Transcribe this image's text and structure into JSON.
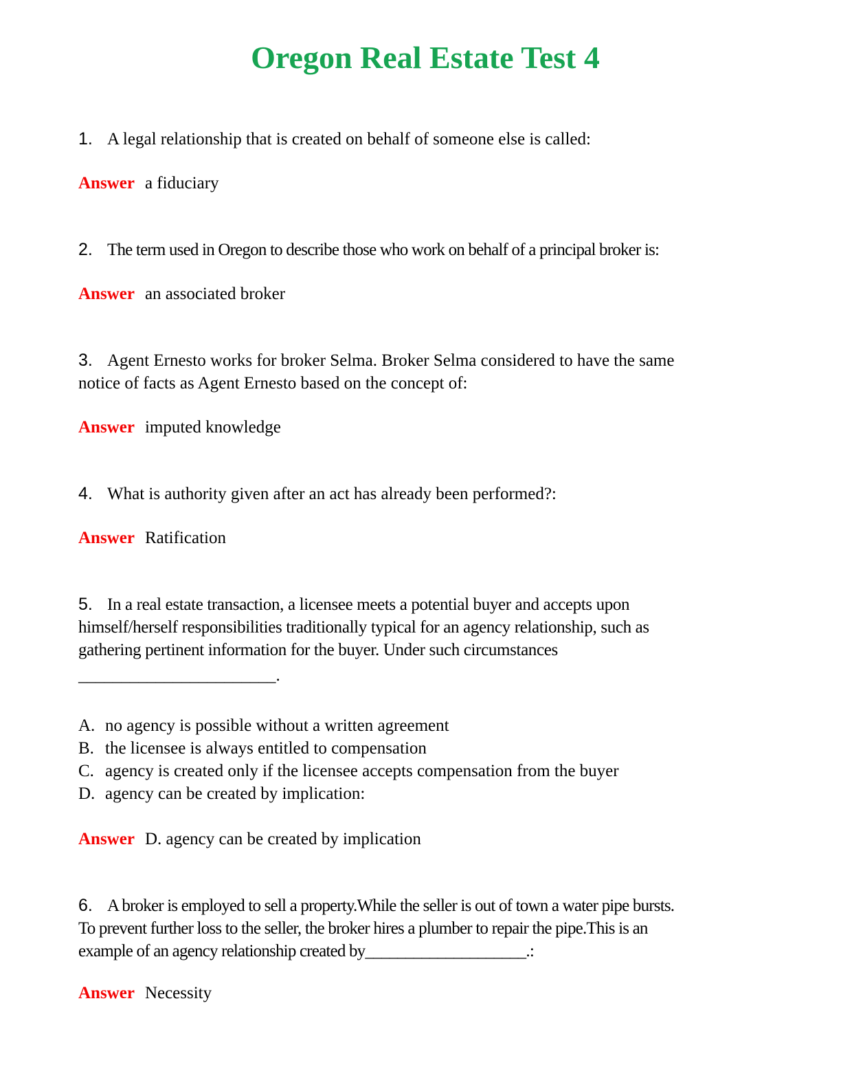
{
  "page": {
    "title": "Oregon Real Estate Test 4"
  },
  "colors": {
    "title_green": "#17a452",
    "answer_red": "#f40404"
  },
  "answer_label": "Answer",
  "questions": [
    {
      "number": "1.",
      "text": "A legal relationship that is created on behalf of someone else is called:",
      "answer": "a fiduciary"
    },
    {
      "number": "2.",
      "text": "The term used in Oregon to describe those who work on behalf of a principal broker is:",
      "answer": "an associated broker"
    },
    {
      "number": "3.",
      "text": "Agent Ernesto works for broker Selma. Broker Selma considered to have the same\nnotice of facts as Agent Ernesto based on the concept of:",
      "answer": "imputed knowledge"
    },
    {
      "number": "4.",
      "text": "What is authority given after an act has already been performed?:",
      "answer": "Ratification"
    },
    {
      "number": "5.",
      "text": "In a real estate transaction, a licensee meets a potential buyer and accepts upon\nhimself/herself responsibilities traditionally typical for an agency relationship, such as\ngathering pertinent information for the buyer. Under such circumstances",
      "blank": "_______________________.",
      "options": [
        {
          "letter": "A.",
          "text": "no agency is possible without a written agreement"
        },
        {
          "letter": "B.",
          "text": "the licensee is always entitled to compensation"
        },
        {
          "letter": "C.",
          "text": "agency is created only if the licensee accepts compensation from the buyer"
        },
        {
          "letter": "D.",
          "text": "agency can be created by implication:"
        }
      ],
      "answer": "D. agency can be created by implication"
    },
    {
      "number": "6.",
      "text": "A broker is employed to sell a property.While the seller is out of town a water pipe bursts.\nTo prevent further loss to the seller, the broker hires a plumber to repair the pipe.This is an\nexample of an agency relationship created by____________________.:",
      "answer": "Necessity"
    }
  ]
}
